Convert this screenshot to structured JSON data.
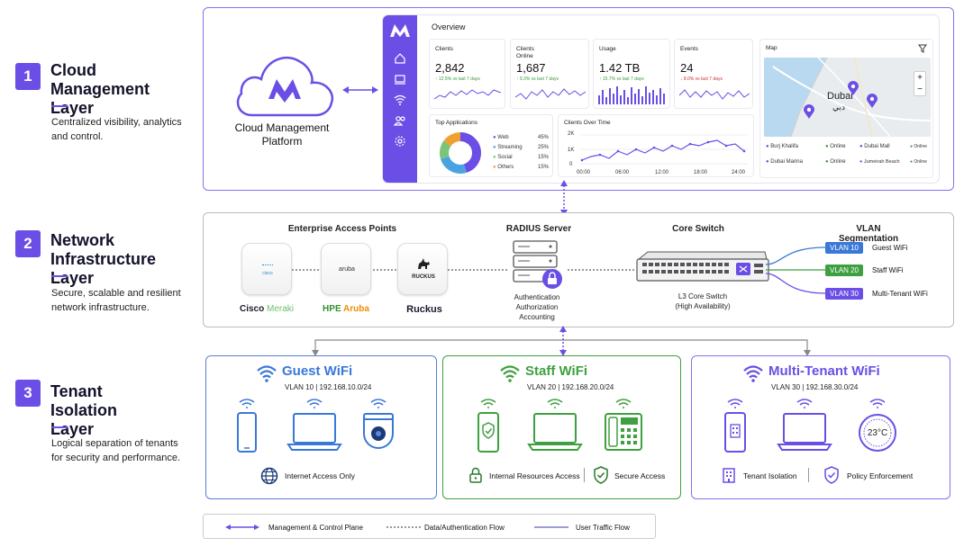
{
  "layers": [
    {
      "num": "1",
      "title": "Cloud Management Layer",
      "desc": "Centralized visibility, analytics and control."
    },
    {
      "num": "2",
      "title": "Network Infrastructure Layer",
      "desc": "Secure, scalable and resilient network infrastructure."
    },
    {
      "num": "3",
      "title": "Tenant Isolation Layer",
      "desc": "Logical separation of tenants for security and performance."
    }
  ],
  "cloud": {
    "label": "Cloud Management Platform"
  },
  "dashboard": {
    "title": "Overview",
    "cards": [
      {
        "label": "Clients",
        "value": "2,842",
        "change": "12.5% vs last 7 days"
      },
      {
        "label": "Clients Online",
        "value": "1,687",
        "change": "9.3% vs last 7 days"
      },
      {
        "label": "Usage",
        "value": "1.42 TB",
        "change": "15.7% vs last 7 days"
      },
      {
        "label": "Events",
        "value": "24",
        "change": "8.0% vs last 7 days"
      }
    ],
    "top_apps": {
      "title": "Top Applications",
      "items": [
        {
          "name": "Web",
          "pct": "45%",
          "color": "#6b4ee6"
        },
        {
          "name": "Streaming",
          "pct": "25%",
          "color": "#4aa3e0"
        },
        {
          "name": "Social",
          "pct": "15%",
          "color": "#7bc47a"
        },
        {
          "name": "Others",
          "pct": "15%",
          "color": "#f0a030"
        }
      ]
    },
    "clients_over_time": {
      "title": "Clients Over Time",
      "y_ticks": [
        "2K",
        "1K",
        "0"
      ],
      "x_ticks": [
        "00:00",
        "06:00",
        "12:00",
        "18:00",
        "24:00"
      ]
    },
    "map": {
      "title": "Map",
      "city": "Dubai",
      "city_ar": "دبي",
      "locations": [
        {
          "name": "Burj Khalifa",
          "status": "Online"
        },
        {
          "name": "Dubai Mall",
          "status": "Online"
        },
        {
          "name": "Dubai Marina",
          "status": "Online"
        },
        {
          "name": "Jumeirah Beach",
          "status": "Online"
        }
      ],
      "zoom_in": "+",
      "zoom_out": "−"
    }
  },
  "infra": {
    "ap_title": "Enterprise Access Points",
    "aps": [
      {
        "brand": "Cisco",
        "sub": "Meraki",
        "logo": "cisco"
      },
      {
        "brand": "HPE",
        "sub": "Aruba",
        "logo": "aruba"
      },
      {
        "brand": "Ruckus",
        "sub": "",
        "logo": "RUCKUS"
      }
    ],
    "radius_title": "RADIUS Server",
    "radius_desc": [
      "Authentication",
      "Authorization",
      "Accounting"
    ],
    "core_title": "Core Switch",
    "core_desc": [
      "L3 Core Switch",
      "(High Availability)"
    ],
    "vlan_title": "VLAN Segmentation",
    "vlans": [
      {
        "tag": "VLAN 10",
        "name": "Guest WiFi",
        "color": "#3a78d8"
      },
      {
        "tag": "VLAN 20",
        "name": "Staff WiFi",
        "color": "#3ea040"
      },
      {
        "tag": "VLAN 30",
        "name": "Multi-Tenant WiFi",
        "color": "#6b4ee6"
      }
    ]
  },
  "tenants": [
    {
      "title": "Guest WiFi",
      "sub": "VLAN 10  |  192.168.10.0/24",
      "foot1": "Internet Access Only",
      "foot2": "",
      "color": "#3a78d8"
    },
    {
      "title": "Staff WiFi",
      "sub": "VLAN 20  |  192.168.20.0/24",
      "foot1": "Internal Resources Access",
      "foot2": "Secure Access",
      "color": "#3ea040"
    },
    {
      "title": "Multi-Tenant WiFi",
      "sub": "VLAN 30  |  192.168.30.0/24",
      "foot1": "Tenant Isolation",
      "foot2": "Policy Enforcement",
      "thermostat": "23°C",
      "color": "#6b4ee6"
    }
  ],
  "legend": {
    "mgmt": "Management & Control Plane",
    "data": "Data/Authentication Flow",
    "user": "User Traffic Flow"
  }
}
